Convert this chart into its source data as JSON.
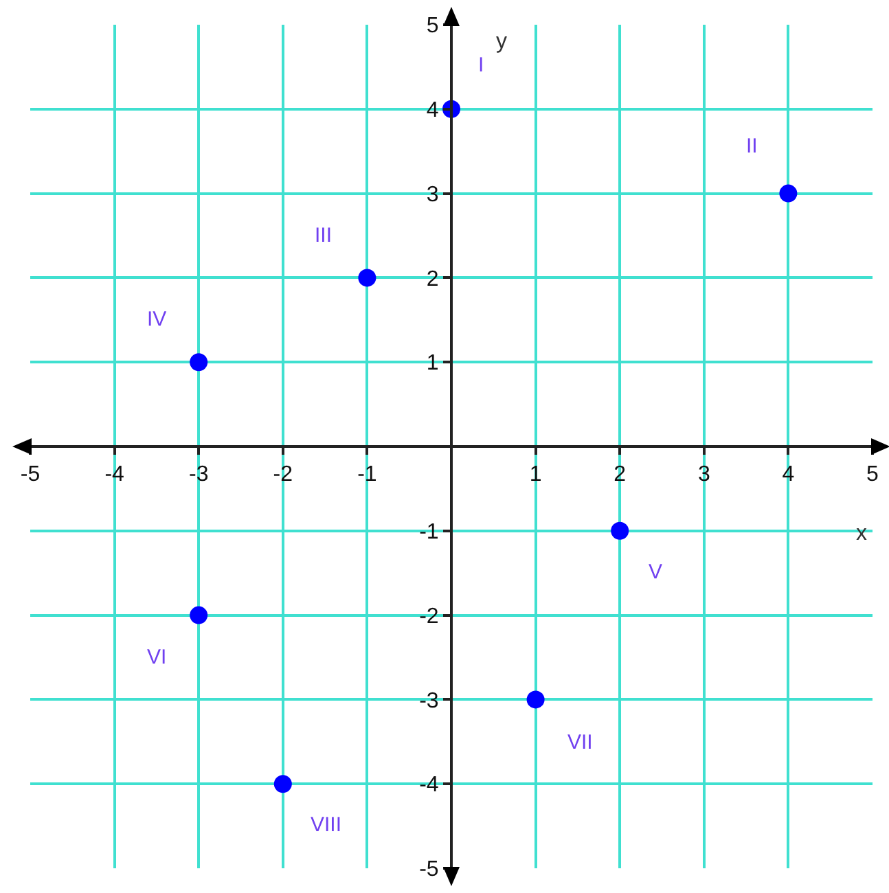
{
  "chart_data": {
    "type": "scatter",
    "x": [
      0,
      4,
      -1,
      -3,
      2,
      -3,
      1,
      -2
    ],
    "series": [
      {
        "color": "#0000ff",
        "values": [
          4,
          3,
          2,
          1,
          -1,
          -2,
          -3,
          -4
        ]
      }
    ],
    "xlabel": "x",
    "ylabel": "y",
    "xlim": [
      -5,
      5
    ],
    "ylim": [
      -5,
      5
    ],
    "xticks": [
      -5,
      -4,
      -3,
      -2,
      -1,
      1,
      2,
      3,
      4,
      5
    ],
    "yticks": [
      -5,
      -4,
      -3,
      -2,
      -1,
      1,
      2,
      3,
      4,
      5
    ],
    "grid": true,
    "marker": "circle",
    "annotations": [
      {
        "text": "I",
        "x": 0,
        "y": 4
      },
      {
        "text": "II",
        "x": 4,
        "y": 3
      },
      {
        "text": "III",
        "x": -1,
        "y": 2
      },
      {
        "text": "IV",
        "x": -3,
        "y": 1
      },
      {
        "text": "V",
        "x": 2,
        "y": -1
      },
      {
        "text": "VI",
        "x": -3,
        "y": -2
      },
      {
        "text": "VII",
        "x": 1,
        "y": -3
      },
      {
        "text": "VIII",
        "x": -2,
        "y": -4
      }
    ]
  }
}
